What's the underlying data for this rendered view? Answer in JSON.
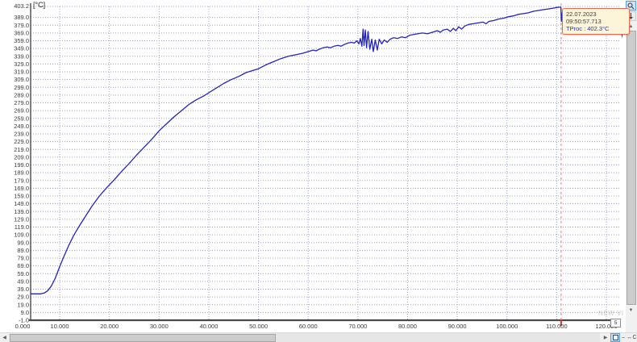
{
  "window": {
    "unit_label": "[°C]"
  },
  "tooltip": {
    "date": "22.07.2023",
    "time": "09:50:57.713",
    "proc_line": "TProc : 402.3°C"
  },
  "page_marker": "5",
  "watermark": "NEW VI",
  "icons": {
    "scroll_left": "◀",
    "scroll_right": "▶",
    "scroll_up": "▲",
    "scroll_down": "▼",
    "minus": "–",
    "pan": "↔",
    "c_button": "C"
  },
  "chart_data": {
    "type": "line",
    "title": "",
    "ylabel": "[°C]",
    "xlabel": "",
    "grid": true,
    "legend": "none",
    "ylim": [
      -1.0,
      403.2
    ],
    "y_max_label": "403.2",
    "y_tick_labels": [
      "389.0",
      "379.0",
      "369.0",
      "359.0",
      "349.0",
      "339.0",
      "329.0",
      "319.0",
      "309.0",
      "299.0",
      "289.0",
      "279.0",
      "269.0",
      "259.0",
      "249.0",
      "239.0",
      "229.0",
      "219.0",
      "209.0",
      "199.0",
      "189.0",
      "179.0",
      "169.0",
      "159.0",
      "149.0",
      "139.0",
      "129.0",
      "119.0",
      "109.0",
      "99.0",
      "89.0",
      "79.0",
      "69.0",
      "59.0",
      "49.0",
      "39.0",
      "29.0",
      "19.0",
      "9.0",
      "-1.0"
    ],
    "x_tick_labels": [
      "0.000",
      "10.000",
      "20.000",
      "30.000",
      "40.000",
      "50.000",
      "60.000",
      "70.000",
      "80.000",
      "90.000",
      "100.000",
      "110.000",
      "120.000"
    ],
    "x_tick_values": [
      0,
      10000,
      20000,
      30000,
      40000,
      50000,
      60000,
      70000,
      80000,
      90000,
      100000,
      110000,
      120000
    ],
    "x_visible_range": [
      4200,
      123400
    ],
    "cursor": {
      "x": 110900,
      "color": "#f09090",
      "tick_color": "#e03030"
    },
    "series": [
      {
        "name": "TProc",
        "color": "#2323bd",
        "points": [
          [
            4200,
            33
          ],
          [
            5200,
            33
          ],
          [
            6200,
            33
          ],
          [
            6900,
            34
          ],
          [
            7600,
            37
          ],
          [
            8300,
            43
          ],
          [
            9100,
            53
          ],
          [
            10000,
            68
          ],
          [
            10900,
            82
          ],
          [
            11800,
            95
          ],
          [
            12800,
            108
          ],
          [
            14000,
            121
          ],
          [
            15200,
            133
          ],
          [
            16500,
            146
          ],
          [
            18000,
            159
          ],
          [
            19500,
            170
          ],
          [
            21000,
            180
          ],
          [
            22500,
            191
          ],
          [
            24000,
            201
          ],
          [
            25500,
            212
          ],
          [
            27000,
            222
          ],
          [
            28500,
            232
          ],
          [
            30000,
            243
          ],
          [
            31500,
            252
          ],
          [
            33000,
            261
          ],
          [
            34500,
            269
          ],
          [
            36000,
            277
          ],
          [
            37500,
            283
          ],
          [
            39000,
            288
          ],
          [
            40000,
            292
          ],
          [
            41500,
            298
          ],
          [
            43000,
            304
          ],
          [
            44500,
            309
          ],
          [
            46000,
            313
          ],
          [
            47500,
            318
          ],
          [
            49000,
            321
          ],
          [
            50000,
            323
          ],
          [
            51500,
            328
          ],
          [
            53000,
            332
          ],
          [
            54500,
            336
          ],
          [
            56000,
            339
          ],
          [
            57500,
            341
          ],
          [
            59000,
            343
          ],
          [
            60000,
            345
          ],
          [
            61000,
            347
          ],
          [
            61600,
            346
          ],
          [
            62200,
            348
          ],
          [
            63000,
            350
          ],
          [
            63800,
            351
          ],
          [
            64500,
            350
          ],
          [
            65200,
            352
          ],
          [
            66000,
            353
          ],
          [
            66600,
            352
          ],
          [
            67200,
            354
          ],
          [
            68000,
            356
          ],
          [
            68700,
            357
          ],
          [
            69300,
            356
          ],
          [
            69800,
            359
          ],
          [
            70200,
            355
          ],
          [
            70500,
            362
          ],
          [
            70800,
            352
          ],
          [
            71050,
            374
          ],
          [
            71250,
            353
          ],
          [
            71500,
            373
          ],
          [
            71750,
            350
          ],
          [
            72050,
            371
          ],
          [
            72400,
            348
          ],
          [
            72800,
            361
          ],
          [
            73100,
            345
          ],
          [
            73500,
            360
          ],
          [
            73900,
            347
          ],
          [
            74300,
            361
          ],
          [
            74800,
            355
          ],
          [
            75300,
            360
          ],
          [
            75900,
            357
          ],
          [
            76500,
            361
          ],
          [
            77200,
            363
          ],
          [
            78000,
            362
          ],
          [
            78800,
            364
          ],
          [
            79600,
            363
          ],
          [
            80400,
            366
          ],
          [
            81200,
            367
          ],
          [
            82000,
            368
          ],
          [
            83000,
            369
          ],
          [
            84000,
            368
          ],
          [
            85000,
            370
          ],
          [
            86000,
            372
          ],
          [
            86600,
            370
          ],
          [
            87200,
            373
          ],
          [
            88000,
            374
          ],
          [
            88600,
            371
          ],
          [
            89200,
            375
          ],
          [
            89700,
            372
          ],
          [
            90300,
            377
          ],
          [
            90900,
            374
          ],
          [
            91500,
            378
          ],
          [
            92300,
            380
          ],
          [
            93200,
            381
          ],
          [
            94200,
            382
          ],
          [
            95200,
            383
          ],
          [
            95800,
            381
          ],
          [
            96400,
            384
          ],
          [
            97300,
            385
          ],
          [
            98300,
            387
          ],
          [
            99300,
            388
          ],
          [
            100300,
            390
          ],
          [
            101300,
            391
          ],
          [
            102300,
            393
          ],
          [
            103300,
            394
          ],
          [
            104300,
            395
          ],
          [
            105300,
            397
          ],
          [
            106300,
            398
          ],
          [
            107300,
            399
          ],
          [
            108300,
            400
          ],
          [
            109300,
            401
          ],
          [
            110100,
            402
          ],
          [
            110600,
            402.3
          ],
          [
            110850,
            402.3
          ],
          [
            110950,
            384
          ],
          [
            111150,
            396
          ],
          [
            111500,
            398
          ],
          [
            112200,
            399
          ],
          [
            113200,
            398
          ],
          [
            114200,
            398
          ],
          [
            115200,
            397
          ],
          [
            116200,
            396
          ],
          [
            117200,
            394
          ],
          [
            118200,
            391
          ],
          [
            119200,
            389
          ],
          [
            120200,
            387
          ],
          [
            121200,
            386
          ],
          [
            122000,
            386
          ],
          [
            122500,
            383
          ],
          [
            122900,
            375
          ],
          [
            123200,
            366
          ],
          [
            123400,
            360
          ]
        ]
      }
    ]
  }
}
